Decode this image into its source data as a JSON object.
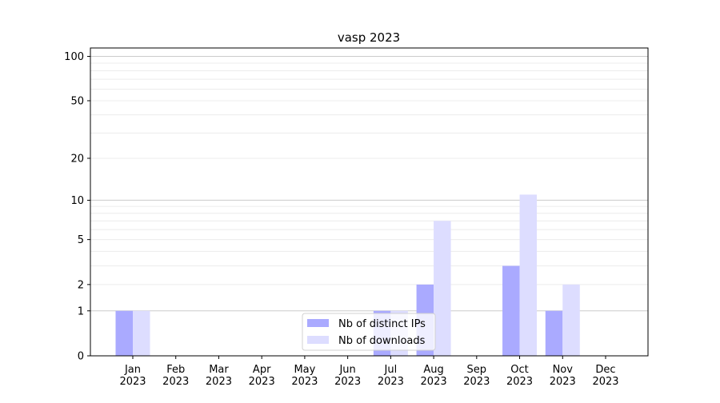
{
  "chart_data": {
    "type": "bar",
    "title": "vasp 2023",
    "xlabel": "",
    "ylabel": "",
    "yscale": "log(1+y)",
    "ylim": [
      0,
      114
    ],
    "yticks": [
      0,
      1,
      2,
      5,
      10,
      20,
      50,
      100
    ],
    "ytick_labels": [
      "0",
      "1",
      "2",
      "5",
      "10",
      "20",
      "50",
      "100"
    ],
    "grid": "horizontal, major and minor",
    "legend_position": "lower center",
    "categories": [
      "Jan\n2023",
      "Feb\n2023",
      "Mar\n2023",
      "Apr\n2023",
      "May\n2023",
      "Jun\n2023",
      "Jul\n2023",
      "Aug\n2023",
      "Sep\n2023",
      "Oct\n2023",
      "Nov\n2023",
      "Dec\n2023"
    ],
    "series": [
      {
        "name": "Nb of distinct IPs",
        "color": "#aaaaff",
        "values": [
          1,
          0,
          0,
          0,
          0,
          0,
          1,
          2,
          0,
          3,
          1,
          0
        ]
      },
      {
        "name": "Nb of downloads",
        "color": "#ddddff",
        "values": [
          1,
          0,
          0,
          0,
          0,
          0,
          1,
          7,
          0,
          11,
          2,
          0
        ]
      }
    ]
  }
}
